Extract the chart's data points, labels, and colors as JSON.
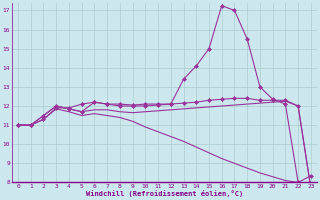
{
  "xlabel": "Windchill (Refroidissement éolien,°C)",
  "background_color": "#cce8ee",
  "grid_color": "#aacccc",
  "line_color": "#993399",
  "xlim": [
    -0.5,
    23.5
  ],
  "ylim": [
    8,
    17.4
  ],
  "xticks": [
    0,
    1,
    2,
    3,
    4,
    5,
    6,
    7,
    8,
    9,
    10,
    11,
    12,
    13,
    14,
    15,
    16,
    17,
    18,
    19,
    20,
    21,
    22,
    23
  ],
  "yticks": [
    8,
    9,
    10,
    11,
    12,
    13,
    14,
    15,
    16,
    17
  ],
  "line1": [
    11.0,
    11.0,
    11.3,
    11.9,
    11.9,
    12.1,
    12.2,
    12.1,
    12.1,
    12.05,
    12.1,
    12.1,
    12.1,
    13.4,
    14.1,
    15.0,
    17.25,
    17.0,
    15.5,
    13.0,
    12.35,
    12.1,
    8.0,
    8.35
  ],
  "line2": [
    11.0,
    11.0,
    11.5,
    12.0,
    11.85,
    11.7,
    12.2,
    12.1,
    12.0,
    12.0,
    12.0,
    12.05,
    12.1,
    12.15,
    12.2,
    12.3,
    12.35,
    12.4,
    12.4,
    12.3,
    12.3,
    12.3,
    12.0,
    7.7
  ],
  "line3": [
    11.0,
    11.0,
    11.5,
    12.0,
    11.85,
    11.7,
    11.8,
    11.8,
    11.7,
    11.65,
    11.7,
    11.75,
    11.8,
    11.85,
    11.9,
    11.95,
    12.0,
    12.05,
    12.1,
    12.15,
    12.2,
    12.25,
    12.0,
    7.7
  ],
  "line4": [
    11.0,
    11.0,
    11.3,
    11.85,
    11.7,
    11.5,
    11.6,
    11.5,
    11.4,
    11.2,
    10.9,
    10.65,
    10.4,
    10.15,
    9.85,
    9.55,
    9.25,
    9.0,
    8.75,
    8.5,
    8.3,
    8.1,
    8.0,
    7.7
  ]
}
